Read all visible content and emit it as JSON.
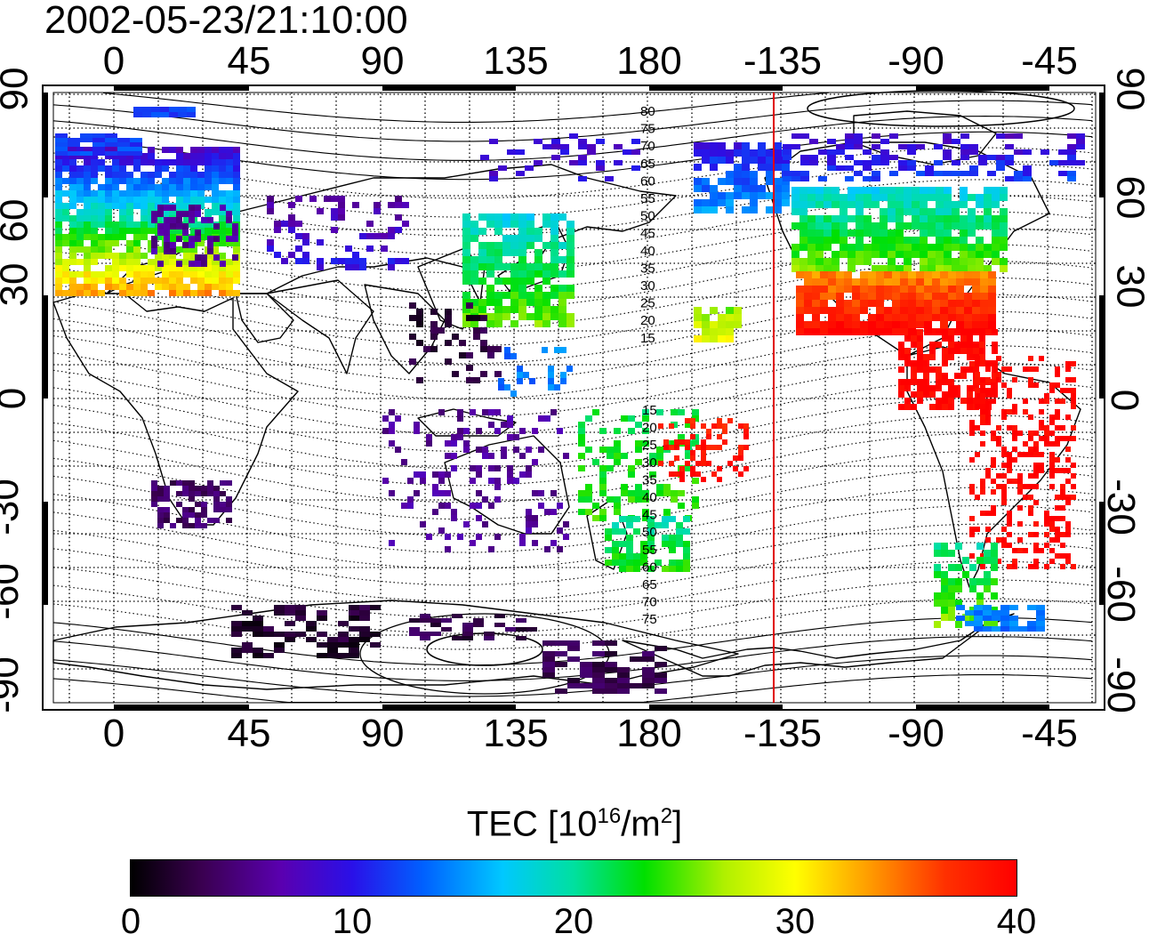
{
  "title": "2002-05-23/21:10:00",
  "axes": {
    "top_lon_ticks": [
      "0",
      "45",
      "90",
      "135",
      "180",
      "-135",
      "-90",
      "-45"
    ],
    "bottom_lon_ticks": [
      "0",
      "45",
      "90",
      "135",
      "180",
      "-135",
      "-90",
      "-45"
    ],
    "left_lat_ticks": [
      "90",
      "60",
      "30",
      "0",
      "-30",
      "-60",
      "-90"
    ],
    "right_lat_ticks": [
      "90",
      "60",
      "30",
      "0",
      "-30",
      "-60",
      "-90"
    ]
  },
  "contour_labels": {
    "north": [
      "80",
      "75",
      "70",
      "65",
      "60",
      "55",
      "50",
      "45",
      "40",
      "35",
      "30",
      "25",
      "20",
      "15"
    ],
    "south": [
      "15",
      "20",
      "25",
      "30",
      "35",
      "40",
      "45",
      "50",
      "55",
      "60",
      "65",
      "70",
      "75"
    ]
  },
  "colorbar": {
    "title_main": "TEC  [10",
    "title_exp": "16",
    "title_mid": "/m",
    "title_exp2": "2",
    "title_end": "]",
    "ticks": [
      "0",
      "10",
      "20",
      "30",
      "40"
    ],
    "range": [
      0,
      40
    ]
  },
  "colors": {
    "terminator_line": "#e00000",
    "frame": "#000000"
  },
  "terminator_longitude": "-135"
}
